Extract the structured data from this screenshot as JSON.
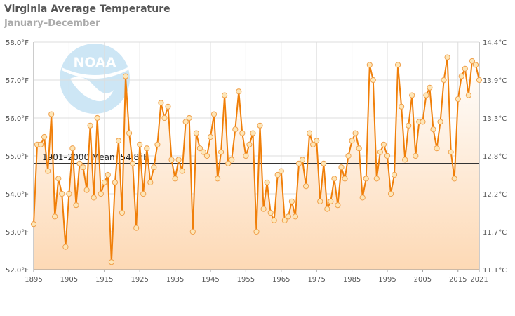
{
  "header": {
    "title": "Virginia Average Temperature",
    "subtitle": "January–December"
  },
  "logo_text": "NOAA",
  "colors": {
    "line": "#f07f09",
    "marker_fill": "#fde6b8",
    "marker_stroke": "#f0a04b",
    "area_top": "#ffffff",
    "area_bottom": "#fdd9b5",
    "mean_line": "#333333",
    "grid": "#dddddd",
    "logo": "#cde6f5"
  },
  "chart_data": {
    "type": "line",
    "title": "Virginia Average Temperature",
    "subtitle": "January–December",
    "x_ticks": [
      "1895",
      "1905",
      "1915",
      "1925",
      "1935",
      "1945",
      "1955",
      "1965",
      "1975",
      "1985",
      "1995",
      "2005",
      "2015",
      "2021"
    ],
    "y_left_ticks": [
      "52.0°F",
      "53.0°F",
      "54.0°F",
      "55.0°F",
      "56.0°F",
      "57.0°F",
      "58.0°F"
    ],
    "y_right_ticks": [
      "11.1°C",
      "11.7°C",
      "12.2°C",
      "12.8°C",
      "13.3°C",
      "13.9°C",
      "14.4°C"
    ],
    "xlim": [
      1895,
      2021
    ],
    "ylim": [
      52,
      58
    ],
    "grid": true,
    "mean": {
      "label": "1901–2000 Mean: 54.8°F",
      "value": 54.8
    },
    "series": [
      {
        "x": [
          1895,
          1896,
          1897,
          1898,
          1899,
          1900,
          1901,
          1902,
          1903,
          1904,
          1905,
          1906,
          1907,
          1908,
          1909,
          1910,
          1911,
          1912,
          1913,
          1914,
          1915,
          1916,
          1917,
          1918,
          1919,
          1920,
          1921,
          1922,
          1923,
          1924,
          1925,
          1926,
          1927,
          1928,
          1929,
          1930,
          1931,
          1932,
          1933,
          1934,
          1935,
          1936,
          1937,
          1938,
          1939,
          1940,
          1941,
          1942,
          1943,
          1944,
          1945,
          1946,
          1947,
          1948,
          1949,
          1950,
          1951,
          1952,
          1953,
          1954,
          1955,
          1956,
          1957,
          1958,
          1959,
          1960,
          1961,
          1962,
          1963,
          1964,
          1965,
          1966,
          1967,
          1968,
          1969,
          1970,
          1971,
          1972,
          1973,
          1974,
          1975,
          1976,
          1977,
          1978,
          1979,
          1980,
          1981,
          1982,
          1983,
          1984,
          1985,
          1986,
          1987,
          1988,
          1989,
          1990,
          1991,
          1992,
          1993,
          1994,
          1995,
          1996,
          1997,
          1998,
          1999,
          2000,
          2001,
          2002,
          2003,
          2004,
          2005,
          2006,
          2007,
          2008,
          2009,
          2010,
          2011,
          2012,
          2013,
          2014,
          2015,
          2016,
          2017,
          2018,
          2019,
          2020,
          2021
        ],
        "values": [
          53.2,
          55.3,
          55.3,
          55.5,
          54.6,
          56.1,
          53.4,
          54.4,
          54.0,
          52.6,
          54.0,
          55.2,
          53.7,
          54.8,
          54.7,
          54.1,
          55.8,
          53.9,
          56.0,
          54.0,
          54.3,
          54.5,
          52.2,
          54.3,
          55.4,
          53.5,
          57.1,
          55.6,
          54.8,
          53.1,
          55.3,
          54.0,
          55.2,
          54.3,
          54.7,
          55.3,
          56.4,
          56.0,
          56.3,
          54.9,
          54.4,
          54.9,
          54.6,
          55.9,
          56.0,
          53.0,
          55.6,
          55.2,
          55.1,
          55.0,
          55.5,
          56.1,
          54.4,
          55.1,
          56.6,
          54.8,
          54.9,
          55.7,
          56.7,
          55.6,
          55.0,
          55.3,
          55.6,
          53.0,
          55.8,
          53.6,
          54.3,
          53.5,
          53.3,
          54.5,
          54.6,
          53.3,
          53.4,
          53.8,
          53.4,
          54.8,
          54.9,
          54.2,
          55.6,
          55.3,
          55.4,
          53.8,
          54.8,
          53.6,
          53.8,
          54.4,
          53.7,
          54.7,
          54.4,
          55.0,
          55.4,
          55.6,
          55.2,
          53.9,
          54.4,
          57.4,
          57.0,
          54.4,
          55.1,
          55.3,
          55.0,
          54.0,
          54.5,
          57.4,
          56.3,
          54.9,
          55.8,
          56.6,
          55.0,
          55.9,
          55.9,
          56.6,
          56.8,
          55.7,
          55.2,
          55.9,
          57.0,
          57.6,
          55.1,
          54.4,
          56.5,
          57.1,
          57.3,
          56.6,
          57.5,
          57.4,
          57.0
        ]
      }
    ]
  }
}
